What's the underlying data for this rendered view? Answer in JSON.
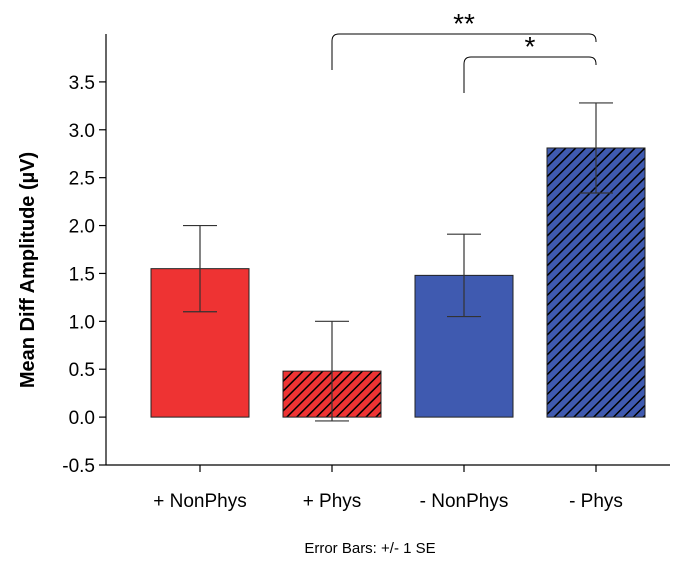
{
  "chart_data": {
    "type": "bar",
    "categories": [
      "+ NonPhys",
      "+ Phys",
      "- NonPhys",
      "- Phys"
    ],
    "values": [
      1.55,
      0.48,
      1.48,
      2.81
    ],
    "error_se": [
      0.45,
      0.52,
      0.43,
      0.47
    ],
    "ylabel": "Mean Diff Amplitude (µV)",
    "xlabel": "",
    "ylim": [
      -0.5,
      4.0
    ],
    "yticks": [
      -0.5,
      0.0,
      0.5,
      1.0,
      1.5,
      2.0,
      2.5,
      3.0,
      3.5
    ],
    "ytick_labels": [
      "-0.5",
      "0.0",
      "0.5",
      "1.0",
      "1.5",
      "2.0",
      "2.5",
      "3.0",
      "3.5"
    ],
    "footnote": "Error Bars: +/- 1 SE",
    "bar_colors": [
      "#ee3333",
      "#ee3333",
      "#3f5ab0",
      "#3f5ab0"
    ],
    "bar_hatched": [
      false,
      true,
      false,
      true
    ],
    "significance": [
      {
        "from": 1,
        "to": 3,
        "label": "**"
      },
      {
        "from": 2,
        "to": 3,
        "label": "*"
      }
    ],
    "grid": false,
    "legend": "none"
  }
}
